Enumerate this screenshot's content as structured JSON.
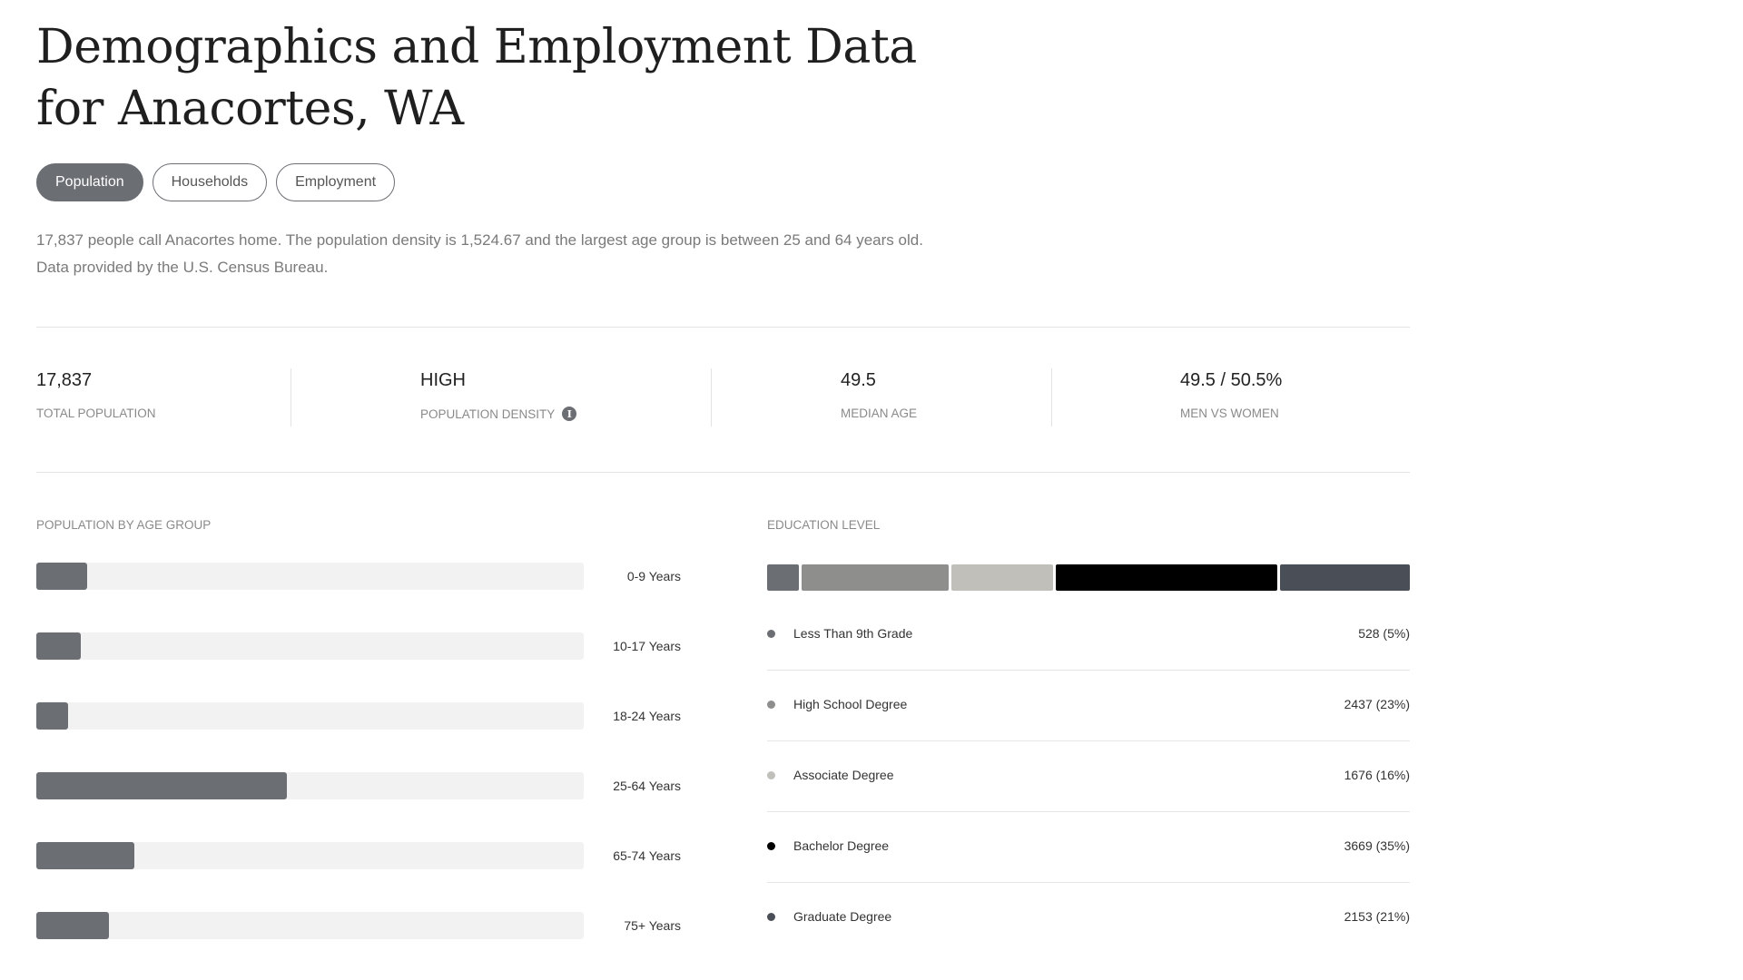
{
  "title": "Demographics and Employment Data for Anacortes, WA",
  "tabs": [
    {
      "label": "Population",
      "active": true
    },
    {
      "label": "Households",
      "active": false
    },
    {
      "label": "Employment",
      "active": false
    }
  ],
  "description": "17,837 people call Anacortes home. The population density is 1,524.67 and the largest age group is between 25 and 64 years old. Data provided by the U.S. Census Bureau.",
  "stats": {
    "total_population": {
      "value": "17,837",
      "label": "TOTAL POPULATION"
    },
    "population_density": {
      "value": "HIGH",
      "label": "POPULATION DENSITY",
      "info_icon": "i"
    },
    "median_age": {
      "value": "49.5",
      "label": "MEDIAN AGE"
    },
    "men_vs_women": {
      "value": "49.5 / 50.5%",
      "label": "MEN VS WOMEN"
    }
  },
  "age_section": {
    "title": "POPULATION BY AGE GROUP",
    "groups": [
      {
        "label": "0-9 Years",
        "fraction": 0.093
      },
      {
        "label": "10-17 Years",
        "fraction": 0.081
      },
      {
        "label": "18-24 Years",
        "fraction": 0.058
      },
      {
        "label": "25-64 Years",
        "fraction": 0.458
      },
      {
        "label": "65-74 Years",
        "fraction": 0.179
      },
      {
        "label": "75+ Years",
        "fraction": 0.133
      }
    ]
  },
  "education_section": {
    "title": "EDUCATION LEVEL",
    "levels": [
      {
        "name": "Less Than 9th Grade",
        "value": "528 (5%)",
        "count": 528,
        "color": "#6b6e73"
      },
      {
        "name": "High School Degree",
        "value": "2437 (23%)",
        "count": 2437,
        "color": "#8e8f8d"
      },
      {
        "name": "Associate Degree",
        "value": "1676 (16%)",
        "count": 1676,
        "color": "#c0bfba"
      },
      {
        "name": "Bachelor Degree",
        "value": "3669 (35%)",
        "count": 3669,
        "color": "#000000"
      },
      {
        "name": "Graduate Degree",
        "value": "2153 (21%)",
        "count": 2153,
        "color": "#4a4e56"
      }
    ]
  }
}
